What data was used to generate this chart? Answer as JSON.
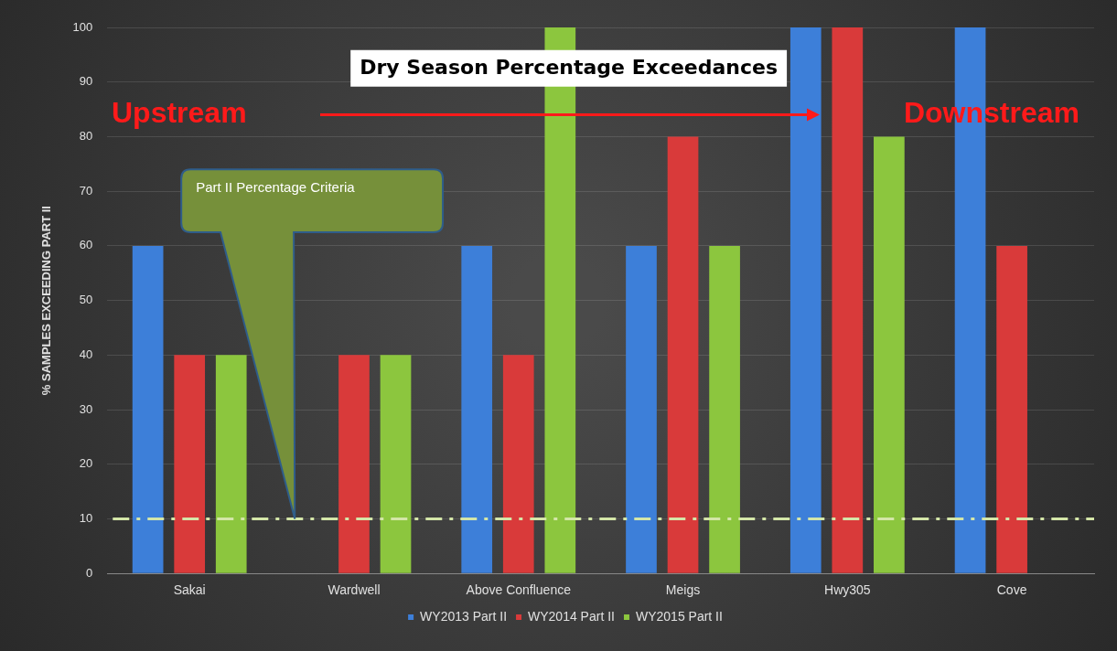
{
  "chart_data": {
    "type": "bar",
    "title": "Dry Season Percentage Exceedances",
    "ylabel": "% SAMPLES EXCEEDING PART II",
    "categories": [
      "Sakai",
      "Wardwell",
      "Above Confluence",
      "Meigs",
      "Hwy305",
      "Cove"
    ],
    "series": [
      {
        "name": "WY2013 Part II",
        "color": "#3d7fd9",
        "values": [
          60,
          null,
          60,
          60,
          100,
          100
        ]
      },
      {
        "name": "WY2014 Part II",
        "color": "#d93a3a",
        "values": [
          40,
          40,
          40,
          80,
          100,
          60
        ]
      },
      {
        "name": "WY2015 Part II",
        "color": "#8cc63e",
        "values": [
          40,
          40,
          100,
          60,
          80,
          null
        ]
      }
    ],
    "ylim": [
      0,
      100
    ],
    "yticks": [
      0,
      10,
      20,
      30,
      40,
      50,
      60,
      70,
      80,
      90,
      100
    ],
    "grid": "y",
    "legend": "bottom",
    "ref_lines": [
      {
        "axis": "y",
        "value": 10,
        "color": "#d4e6a8",
        "line_style": "dashed"
      }
    ],
    "annotations": [
      "Upstream",
      "Downstream",
      "Part II Percentage Criteria"
    ]
  }
}
